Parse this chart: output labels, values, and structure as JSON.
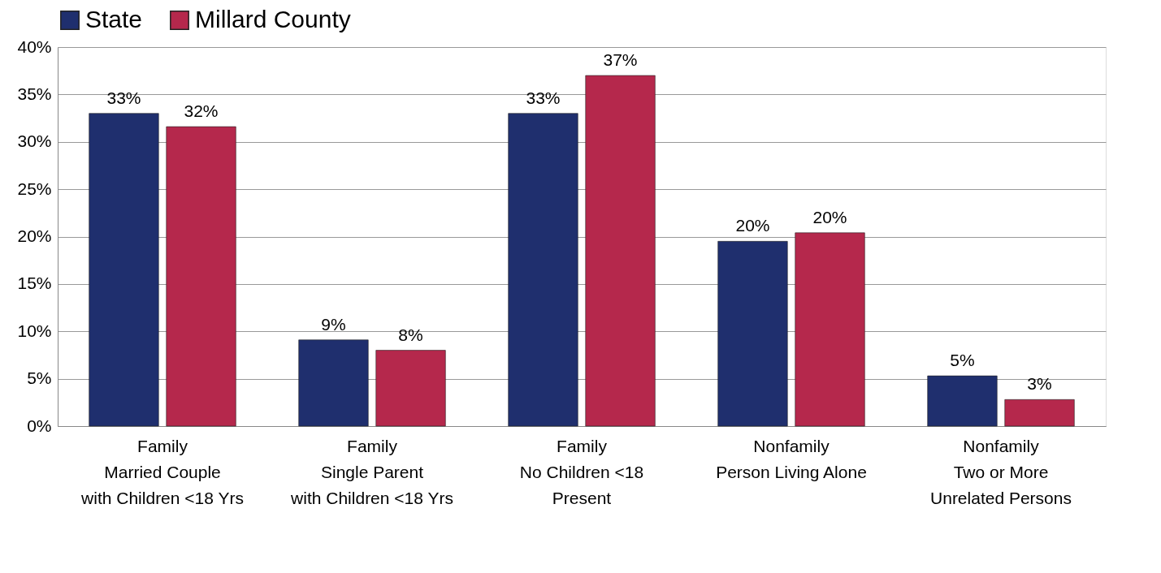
{
  "chart_data": {
    "type": "bar",
    "categories": [
      "Family\nMarried Couple\nwith Children <18 Yrs",
      "Family\nSingle Parent\nwith Children <18 Yrs",
      "Family\nNo Children <18\nPresent",
      "Nonfamily\nPerson Living Alone",
      "Nonfamily\nTwo or More\nUnrelated Persons"
    ],
    "series": [
      {
        "name": "State",
        "color": "#1f2f6e",
        "values": [
          33.0,
          9.1,
          33.0,
          19.5,
          5.3
        ],
        "value_labels": [
          "33%",
          "9%",
          "33%",
          "20%",
          "5%"
        ]
      },
      {
        "name": "Millard County",
        "color": "#b5284c",
        "values": [
          31.6,
          8.0,
          37.0,
          20.4,
          2.8
        ],
        "value_labels": [
          "32%",
          "8%",
          "37%",
          "20%",
          "3%"
        ]
      }
    ],
    "ylim": [
      0,
      40
    ],
    "yticks": [
      {
        "value": 0,
        "label": "0%"
      },
      {
        "value": 5,
        "label": "5%"
      },
      {
        "value": 10,
        "label": "10%"
      },
      {
        "value": 15,
        "label": "15%"
      },
      {
        "value": 20,
        "label": "20%"
      },
      {
        "value": 25,
        "label": "25%"
      },
      {
        "value": 30,
        "label": "30%"
      },
      {
        "value": 35,
        "label": "35%"
      },
      {
        "value": 40,
        "label": "40%"
      }
    ],
    "grid": "y",
    "legend": "top"
  }
}
